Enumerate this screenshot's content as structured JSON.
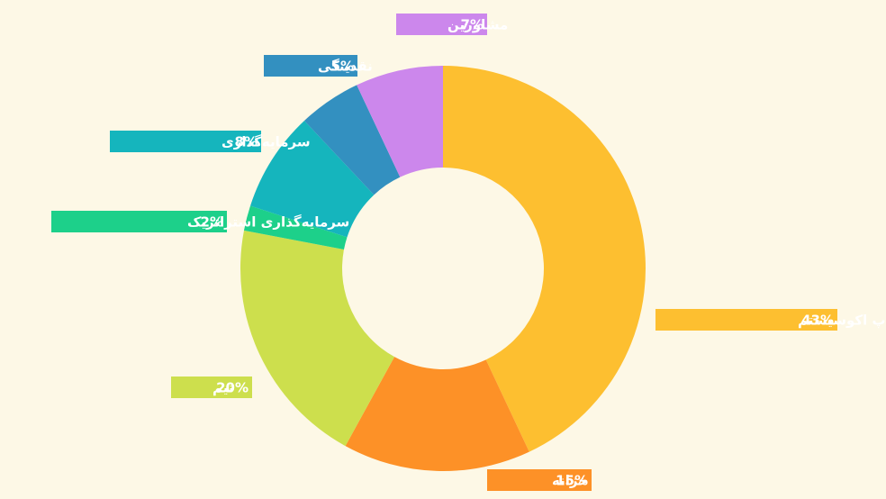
{
  "chart_data": {
    "type": "pie",
    "categories": [
      "ایردراپ اکوسیستم",
      "خزانه",
      "تیم",
      "سرمایه‌گذاری استراتژیک",
      "سرمایه‌گذاری",
      "نقدینگی",
      "مشاورین"
    ],
    "values": [
      43,
      15,
      20,
      2,
      8,
      5,
      7
    ],
    "value_labels": [
      "43%",
      "15%",
      "20%",
      "2%",
      "8%",
      "5%",
      "7%"
    ],
    "colors": [
      "#fdbf30",
      "#fd9127",
      "#cddf4d",
      "#1dd08a",
      "#15b5bd",
      "#3390c0",
      "#cc87ec"
    ]
  }
}
